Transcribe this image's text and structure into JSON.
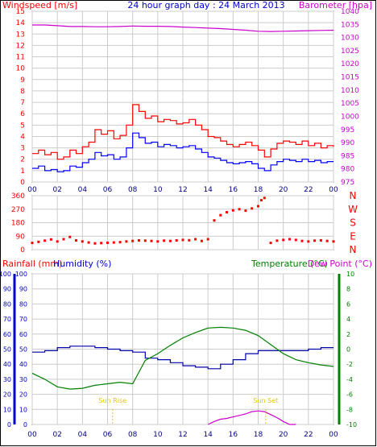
{
  "colors": {
    "wind": "#ff0000",
    "gust": "#ff0000",
    "wind_avg": "#0000ff",
    "barometer": "#cc00cc",
    "direction": "#ff0000",
    "rainfall": "#ff0000",
    "humidity": "#0000aa",
    "temperature": "#008000",
    "dew_point": "#cc00cc",
    "sun": "#e6c800",
    "frame": "#000000"
  },
  "chart_data": [
    {
      "type": "line",
      "title": "24 hour graph day : 24 March 2013",
      "left_axis_label": "Windspeed [m/s]",
      "right_axis_label": "Barometer [hpa]",
      "x_tick_labels": [
        "00",
        "02",
        "04",
        "06",
        "08",
        "10",
        "12",
        "14",
        "16",
        "18",
        "20",
        "22",
        "00"
      ],
      "y_left_ticks": [
        "0",
        "1",
        "2",
        "3",
        "4",
        "5",
        "6",
        "7",
        "8",
        "9",
        "10",
        "11",
        "12",
        "13",
        "14",
        "15"
      ],
      "y_right_ticks": [
        "975",
        "980",
        "985",
        "990",
        "995",
        "1000",
        "1005",
        "1010",
        "1015",
        "1020",
        "1025",
        "1030",
        "1035",
        "1040"
      ],
      "y_left_range": [
        0,
        15
      ],
      "y_right_range": [
        975,
        1040
      ],
      "x_range_hours": [
        0,
        24
      ],
      "series": [
        {
          "role": "gust",
          "x": [
            0,
            0.5,
            1,
            1.5,
            2,
            2.5,
            3,
            3.5,
            4,
            4.5,
            5,
            5.5,
            6,
            6.5,
            7,
            7.5,
            8,
            8.5,
            9,
            9.5,
            10,
            10.5,
            11,
            11.5,
            12,
            12.5,
            13,
            13.5,
            14,
            14.5,
            15,
            15.5,
            16,
            16.5,
            17,
            17.5,
            18,
            18.5,
            19,
            19.5,
            20,
            20.5,
            21,
            21.5,
            22,
            22.5,
            23,
            23.5,
            24
          ],
          "y": [
            2.5,
            2.8,
            2.4,
            2.6,
            2,
            2.2,
            2.8,
            2.5,
            3.1,
            3.5,
            4.6,
            4.2,
            4.5,
            3.8,
            4.1,
            5,
            6.8,
            6.2,
            5.6,
            5.8,
            5.3,
            5.5,
            5.4,
            5.1,
            5.2,
            5.5,
            5.0,
            4.6,
            4.0,
            3.9,
            3.6,
            3.3,
            3.1,
            3.3,
            3.5,
            3.2,
            2.8,
            2.2,
            2.9,
            3.4,
            3.6,
            3.5,
            3.3,
            3.6,
            3.2,
            3.4,
            3.0,
            3.2,
            3.1
          ]
        },
        {
          "role": "average",
          "x": [
            0,
            0.5,
            1,
            1.5,
            2,
            2.5,
            3,
            3.5,
            4,
            4.5,
            5,
            5.5,
            6,
            6.5,
            7,
            7.5,
            8,
            8.5,
            9,
            9.5,
            10,
            10.5,
            11,
            11.5,
            12,
            12.5,
            13,
            13.5,
            14,
            14.5,
            15,
            15.5,
            16,
            16.5,
            17,
            17.5,
            18,
            18.5,
            19,
            19.5,
            20,
            20.5,
            21,
            21.5,
            22,
            22.5,
            23,
            23.5,
            24
          ],
          "y": [
            1.2,
            1.4,
            1.0,
            1.1,
            0.9,
            1.0,
            1.4,
            1.3,
            1.7,
            2.0,
            2.6,
            2.3,
            2.4,
            2.0,
            2.2,
            3.0,
            4.3,
            3.9,
            3.4,
            3.5,
            3.1,
            3.3,
            3.2,
            3.0,
            3.1,
            3.2,
            2.9,
            2.6,
            2.2,
            2.1,
            1.9,
            1.7,
            1.6,
            1.7,
            1.8,
            1.6,
            1.2,
            1.0,
            1.5,
            1.8,
            2.0,
            1.9,
            1.8,
            2.0,
            1.8,
            1.9,
            1.7,
            1.8,
            1.8
          ]
        },
        {
          "role": "barometer",
          "x": [
            0,
            1,
            2,
            3,
            4,
            5,
            6,
            7,
            8,
            9,
            10,
            11,
            12,
            13,
            14,
            15,
            16,
            17,
            18,
            19,
            20,
            21,
            22,
            23,
            24
          ],
          "y": [
            1034.8,
            1034.8,
            1034.5,
            1034.2,
            1034.2,
            1034.1,
            1034.1,
            1034.2,
            1034.4,
            1034.3,
            1034.3,
            1034.2,
            1034.0,
            1033.8,
            1033.6,
            1033.4,
            1033.1,
            1032.8,
            1032.4,
            1032.3,
            1032.4,
            1032.5,
            1032.6,
            1032.7,
            1032.8
          ]
        }
      ]
    },
    {
      "type": "scatter",
      "series_role": "wind_direction",
      "y_ticks": [
        "0",
        "90",
        "180",
        "270",
        "360"
      ],
      "compass_labels": [
        "N",
        "W",
        "S",
        "E",
        "N"
      ],
      "y_range": [
        0,
        360
      ],
      "x_range_hours": [
        0,
        24
      ],
      "x": [
        0,
        0.5,
        1,
        1.5,
        2,
        2.5,
        3,
        3.5,
        4,
        4.5,
        5,
        5.5,
        6,
        6.5,
        7,
        7.5,
        8,
        8.5,
        9,
        9.5,
        10,
        10.5,
        11,
        11.5,
        12,
        12.5,
        13,
        13.5,
        14,
        14.5,
        15,
        15.5,
        16,
        16.5,
        17,
        17.5,
        18,
        18.25,
        18.5,
        19,
        19.5,
        20,
        20.5,
        21,
        21.5,
        22,
        22.5,
        23,
        23.5,
        24
      ],
      "y": [
        45,
        52,
        60,
        68,
        55,
        70,
        85,
        62,
        55,
        48,
        42,
        44,
        46,
        48,
        50,
        55,
        58,
        62,
        60,
        58,
        55,
        60,
        58,
        62,
        65,
        63,
        70,
        58,
        70,
        195,
        230,
        250,
        262,
        270,
        260,
        275,
        290,
        330,
        345,
        45,
        60,
        65,
        70,
        65,
        58,
        55,
        60,
        62,
        58,
        55
      ]
    },
    {
      "type": "line",
      "left_axis_labels": [
        "Rainfall (mm)",
        "Humidity (%)"
      ],
      "right_axis_labels": [
        "Temperature (°C)",
        "Dew Point (°C)"
      ],
      "y_left_ticks": [
        "0",
        "10",
        "20",
        "30",
        "40",
        "50",
        "60",
        "70",
        "80",
        "90",
        "100"
      ],
      "y_right_ticks": [
        "-10",
        "-8",
        "-6",
        "-4",
        "-2",
        "0",
        "2",
        "4",
        "6",
        "8",
        "10"
      ],
      "y_left_range": [
        0,
        100
      ],
      "y_right_range": [
        -10,
        10
      ],
      "x_tick_labels": [
        "00",
        "02",
        "04",
        "06",
        "08",
        "10",
        "12",
        "14",
        "16",
        "18",
        "20",
        "22",
        "00"
      ],
      "x_range_hours": [
        0,
        24
      ],
      "annotations": [
        {
          "text": "Sun Rise",
          "x_hours": 6.4
        },
        {
          "text": "Sun Set",
          "x_hours": 18.6
        }
      ],
      "series": [
        {
          "role": "humidity",
          "x": [
            0,
            1,
            2,
            3,
            4,
            5,
            6,
            7,
            8,
            9,
            10,
            11,
            12,
            13,
            14,
            15,
            16,
            17,
            18,
            19,
            20,
            21,
            22,
            23,
            24
          ],
          "y": [
            48,
            49,
            51,
            52,
            52,
            51,
            50,
            49,
            48,
            44,
            43,
            41,
            39,
            38,
            37,
            40,
            43,
            47,
            49,
            49,
            49,
            49,
            50,
            51,
            51
          ]
        },
        {
          "role": "temperature",
          "x": [
            0,
            1,
            2,
            3,
            4,
            5,
            6,
            7,
            8,
            9,
            10,
            11,
            12,
            13,
            14,
            15,
            16,
            17,
            18,
            19,
            20,
            21,
            22,
            23,
            24
          ],
          "y": [
            -3.2,
            -4,
            -5,
            -5.3,
            -5.2,
            -4.8,
            -4.6,
            -4.4,
            -4.6,
            -1.5,
            -0.6,
            0.5,
            1.5,
            2.2,
            2.8,
            2.9,
            2.8,
            2.5,
            1.8,
            0.6,
            -0.6,
            -1.4,
            -1.8,
            -2.1,
            -2.3
          ]
        },
        {
          "role": "dew_point",
          "x": [
            14,
            14.5,
            15,
            15.5,
            16,
            16.5,
            17,
            17.5,
            18,
            18.5,
            19,
            19.5,
            20,
            20.5,
            21
          ],
          "y": [
            -10,
            -9.6,
            -9.3,
            -9.2,
            -9.0,
            -8.8,
            -8.6,
            -8.3,
            -8.2,
            -8.3,
            -8.7,
            -9.1,
            -9.6,
            -10,
            -10
          ]
        }
      ]
    }
  ]
}
